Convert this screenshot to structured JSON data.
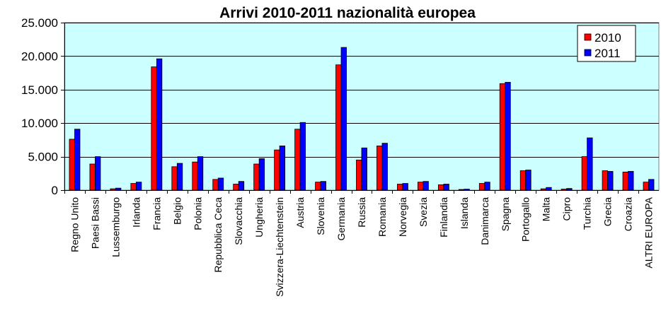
{
  "chart_data": {
    "type": "bar",
    "title": "Arrivi 2010-2011 nazionalità europea",
    "xlabel": "",
    "ylabel": "",
    "ylim": [
      0,
      25000
    ],
    "yticks": [
      0,
      5000,
      10000,
      15000,
      20000,
      25000
    ],
    "ytick_labels": [
      "0",
      "5.000",
      "10.000",
      "15.000",
      "20.000",
      "25.000"
    ],
    "grid": true,
    "legend_position": "top-right",
    "plot_background": "#ccffff",
    "categories": [
      "Regno Unito",
      "Paesi Bassi",
      "Lussemburgo",
      "Irlanda",
      "Francia",
      "Belgio",
      "Polonia",
      "Repubblica Ceca",
      "Slovacchia",
      "Ungheria",
      "Svizzera-Liechtenstein",
      "Austria",
      "Slovenia",
      "Germania",
      "Russia",
      "Romania",
      "Norvegia",
      "Svezia",
      "Finlandia",
      "Islanda",
      "Danimarca",
      "Spagna",
      "Portogallo",
      "Malta",
      "Cipro",
      "Turchia",
      "Grecia",
      "Croazia",
      "ALTRI EUROPA"
    ],
    "series": [
      {
        "name": "2010",
        "color": "#ff0000",
        "values": [
          7600,
          3900,
          200,
          1000,
          18400,
          3500,
          4200,
          1600,
          900,
          3900,
          6000,
          9100,
          1200,
          18700,
          4500,
          6600,
          900,
          1200,
          800,
          100,
          1000,
          15900,
          2900,
          200,
          150,
          5000,
          2900,
          2700,
          1200
        ]
      },
      {
        "name": "2011",
        "color": "#0000ff",
        "values": [
          9100,
          5000,
          300,
          1200,
          19600,
          4000,
          5000,
          1800,
          1300,
          4700,
          6600,
          10100,
          1300,
          21300,
          6300,
          7000,
          1000,
          1300,
          900,
          150,
          1200,
          16100,
          3000,
          400,
          250,
          7800,
          2800,
          2800,
          1600
        ]
      }
    ]
  }
}
